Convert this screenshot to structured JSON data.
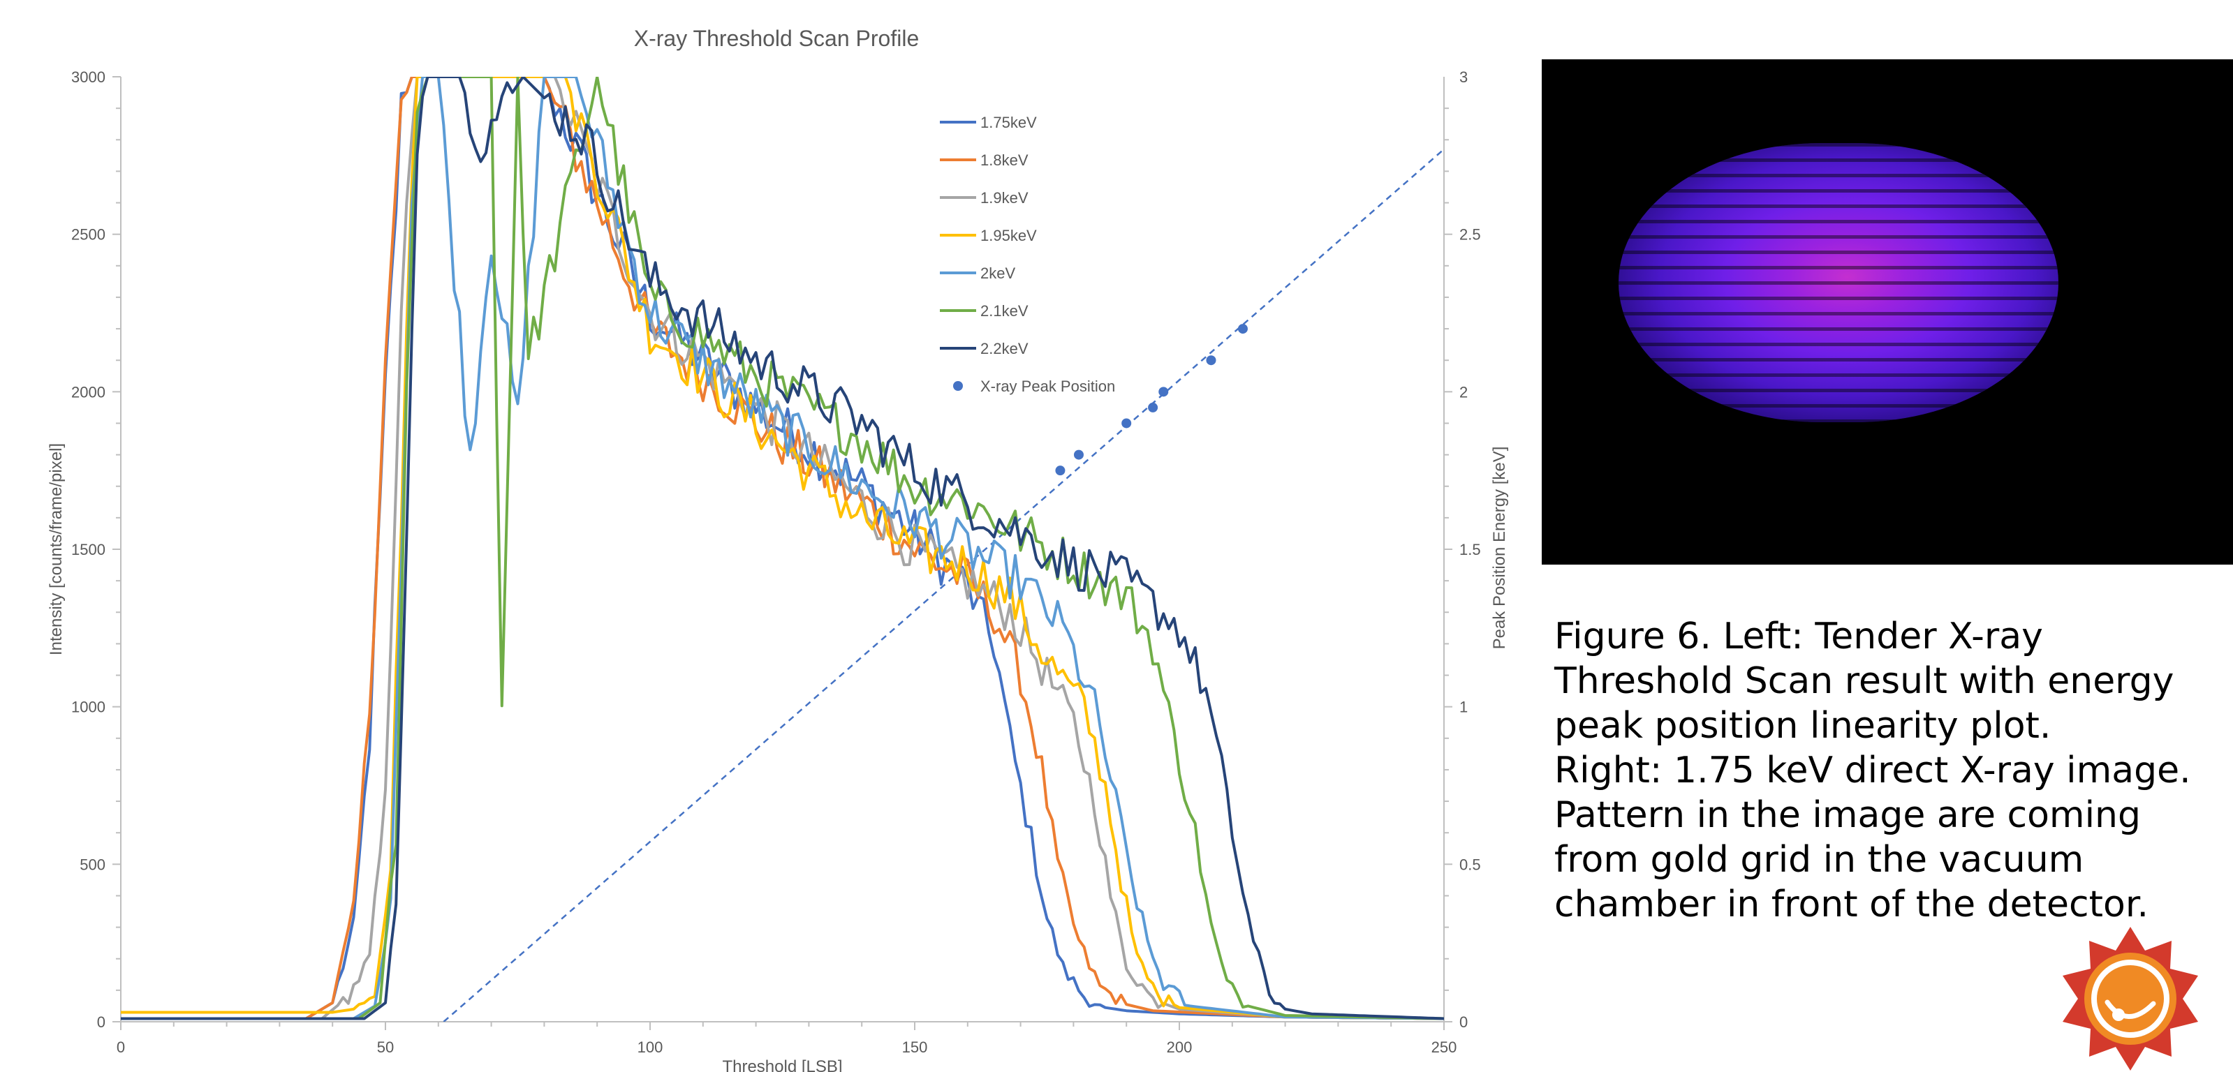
{
  "chart_data": {
    "type": "line",
    "title": "X-ray Threshold Scan Profile",
    "xlabel": "Threshold [LSB]",
    "ylabel": "Intensity [counts/frame/pixel]",
    "y2label": "Peak Position Energy [keV]",
    "xlim": [
      0,
      250
    ],
    "ylim": [
      0,
      3000
    ],
    "y2lim": [
      0,
      3
    ],
    "x_ticks": [
      "0",
      "50",
      "100",
      "150",
      "200",
      "250"
    ],
    "y_ticks": [
      "0",
      "500",
      "1000",
      "1500",
      "2000",
      "2500",
      "3000"
    ],
    "y2_ticks": [
      "0",
      "0.5",
      "1",
      "1.5",
      "2",
      "2.5",
      "3"
    ],
    "legend_position": "top-right",
    "colors": {
      "1.75keV": "#4472c4",
      "1.8keV": "#ed7d31",
      "1.9keV": "#a5a5a5",
      "1.95keV": "#ffc000",
      "2keV": "#5b9bd5",
      "2.1keV": "#70ad47",
      "2.2keV": "#264478",
      "peak": "#4472c4"
    },
    "series": [
      {
        "name": "1.75keV",
        "x": [
          0,
          35,
          40,
          44,
          47,
          50,
          53,
          55,
          80,
          100,
          120,
          140,
          150,
          160,
          165,
          168,
          172,
          175,
          178,
          182,
          186,
          190,
          200,
          220,
          250
        ],
        "y": [
          10,
          10,
          60,
          300,
          900,
          2000,
          2900,
          3000,
          3000,
          2250,
          1950,
          1700,
          1550,
          1380,
          1200,
          900,
          580,
          330,
          170,
          80,
          45,
          35,
          25,
          15,
          10
        ]
      },
      {
        "name": "1.8keV",
        "x": [
          0,
          35,
          40,
          44,
          47,
          50,
          53,
          55,
          80,
          100,
          120,
          140,
          150,
          160,
          165,
          170,
          174,
          177,
          181,
          185,
          190,
          195,
          220,
          250
        ],
        "y": [
          10,
          10,
          60,
          350,
          1000,
          2100,
          2900,
          3000,
          3000,
          2200,
          1900,
          1650,
          1500,
          1400,
          1300,
          1100,
          800,
          500,
          250,
          110,
          55,
          35,
          15,
          10
        ]
      },
      {
        "name": "1.9keV",
        "x": [
          0,
          38,
          43,
          47,
          50,
          53,
          56,
          82,
          100,
          120,
          140,
          150,
          160,
          168,
          175,
          180,
          184,
          187,
          190,
          195,
          200,
          220,
          250
        ],
        "y": [
          10,
          10,
          80,
          200,
          700,
          2300,
          3000,
          3000,
          2250,
          1950,
          1650,
          1500,
          1400,
          1300,
          1100,
          950,
          700,
          400,
          180,
          70,
          40,
          15,
          10
        ]
      },
      {
        "name": "1.95keV",
        "x": [
          0,
          40,
          44,
          48,
          51,
          54,
          56,
          84,
          100,
          120,
          140,
          150,
          160,
          168,
          175,
          182,
          186,
          189,
          192,
          196,
          200,
          220,
          250
        ],
        "y": [
          30,
          30,
          40,
          100,
          500,
          2200,
          3000,
          3000,
          2200,
          1900,
          1600,
          1500,
          1450,
          1350,
          1150,
          1000,
          750,
          450,
          200,
          80,
          45,
          15,
          10
        ]
      },
      {
        "name": "2keV",
        "x": [
          0,
          44,
          48,
          51,
          53,
          55,
          57,
          60,
          66,
          70,
          75,
          80,
          86,
          100,
          120,
          140,
          150,
          160,
          170,
          178,
          184,
          188,
          191,
          194,
          197,
          202,
          220,
          250
        ],
        "y": [
          10,
          10,
          50,
          400,
          1500,
          2600,
          3000,
          3000,
          1800,
          2500,
          1900,
          3000,
          3000,
          2250,
          1950,
          1700,
          1600,
          1500,
          1400,
          1250,
          1000,
          700,
          450,
          250,
          120,
          50,
          15,
          10
        ]
      },
      {
        "name": "2.1keV",
        "x": [
          0,
          45,
          49,
          52,
          54,
          56,
          58,
          70,
          72,
          75,
          77,
          90,
          100,
          120,
          140,
          150,
          160,
          170,
          180,
          190,
          195,
          199,
          203,
          206,
          209,
          213,
          220,
          250
        ],
        "y": [
          10,
          10,
          60,
          600,
          2000,
          2900,
          3000,
          3000,
          1000,
          3000,
          2100,
          3000,
          2300,
          2050,
          1850,
          1700,
          1650,
          1550,
          1450,
          1350,
          1200,
          900,
          600,
          300,
          120,
          50,
          20,
          10
        ]
      },
      {
        "name": "2.2keV",
        "x": [
          0,
          46,
          50,
          52,
          54,
          56,
          58,
          64,
          68,
          72,
          76,
          88,
          100,
          120,
          140,
          150,
          160,
          170,
          180,
          190,
          200,
          205,
          208,
          211,
          214,
          217,
          220,
          225,
          250
        ],
        "y": [
          10,
          10,
          60,
          400,
          1600,
          2800,
          3000,
          3000,
          2800,
          2900,
          3000,
          2800,
          2350,
          2100,
          1900,
          1750,
          1650,
          1550,
          1450,
          1400,
          1250,
          1050,
          800,
          500,
          250,
          90,
          40,
          25,
          10
        ]
      }
    ],
    "peak_series": {
      "name": "X-ray Peak Position",
      "x": [
        177.5,
        181,
        190,
        195,
        197,
        206,
        212
      ],
      "y": [
        1.75,
        1.8,
        1.9,
        1.95,
        2.0,
        2.1,
        2.2
      ]
    },
    "fit_line": {
      "x": [
        61,
        250
      ],
      "y": [
        0,
        2.77
      ]
    }
  },
  "caption": {
    "lines": [
      "Figure 6. Left: Tender X-ray",
      "Threshold Scan result with energy",
      "peak position linearity plot.",
      "Right: 1.75 keV direct X-ray image.",
      "Pattern in the image are coming",
      "from gold grid in the vacuum",
      "chamber in front of the detector."
    ]
  },
  "logo": {
    "colors": {
      "outer": "#d33a2c",
      "inner": "#f08a24",
      "ring": "#ffffff"
    }
  }
}
